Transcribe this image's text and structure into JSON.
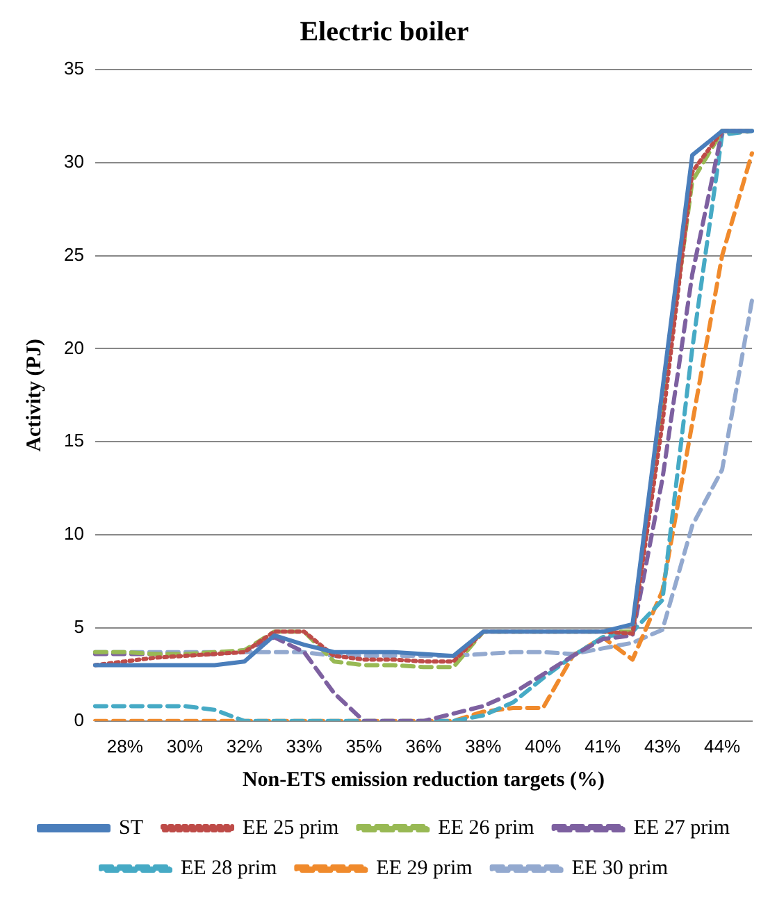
{
  "chart_data": {
    "type": "line",
    "title": "Electric boiler",
    "xlabel": "Non-ETS emission reduction targets (%)",
    "ylabel": "Activity (PJ)",
    "categories": [
      null,
      "28%",
      null,
      "30%",
      null,
      "32%",
      null,
      "33%",
      null,
      "35%",
      null,
      "36%",
      null,
      "38%",
      null,
      "40%",
      null,
      "41%",
      null,
      "43%",
      null,
      "44%",
      null
    ],
    "series": [
      {
        "name": "ST",
        "color": "#4a7ebb",
        "line_style": "solid",
        "values": [
          3,
          3,
          3,
          3,
          3,
          3.2,
          4.6,
          4.1,
          3.7,
          3.7,
          3.7,
          3.6,
          3.5,
          4.8,
          4.8,
          4.8,
          4.8,
          4.8,
          5.2,
          17.8,
          30.4,
          31.7,
          31.7
        ]
      },
      {
        "name": "EE 25 prim",
        "color": "#be4b48",
        "line_style": "dotted",
        "values": [
          3,
          3.2,
          3.4,
          3.5,
          3.6,
          3.7,
          4.8,
          4.8,
          3.5,
          3.3,
          3.3,
          3.2,
          3.2,
          4.8,
          4.8,
          4.8,
          4.8,
          4.8,
          4.7,
          16,
          29.5,
          31.7,
          31.7
        ]
      },
      {
        "name": "EE 26 prim",
        "color": "#98b954",
        "line_style": "dashed",
        "values": [
          3.7,
          3.7,
          3.6,
          3.6,
          3.7,
          3.8,
          4.8,
          4.8,
          3.2,
          3,
          3,
          2.9,
          2.9,
          4.8,
          4.8,
          4.8,
          4.8,
          4.8,
          4.8,
          17,
          29,
          31.7,
          31.7
        ]
      },
      {
        "name": "EE 27 prim",
        "color": "#7d60a0",
        "line_style": "dashed",
        "values": [
          3.6,
          3.6,
          3.6,
          3.6,
          3.6,
          3.8,
          4.5,
          3.7,
          1.5,
          0,
          0,
          0,
          0.4,
          0.8,
          1.5,
          2.5,
          3.5,
          4.4,
          4.6,
          13,
          24,
          31.7,
          31.7
        ]
      },
      {
        "name": "EE 28 prim",
        "color": "#46aac5",
        "line_style": "dashed",
        "values": [
          0.8,
          0.8,
          0.8,
          0.8,
          0.6,
          0,
          0,
          0,
          0,
          0,
          0,
          0,
          0,
          0.3,
          1,
          2.3,
          3.5,
          4.5,
          4.8,
          6.5,
          20,
          31.5,
          31.7
        ]
      },
      {
        "name": "EE 29 prim",
        "color": "#f08a2c",
        "line_style": "dashed",
        "values": [
          0,
          0,
          0,
          0,
          0,
          0,
          0,
          0,
          0,
          0,
          0,
          0,
          0,
          0.5,
          0.7,
          0.7,
          3.5,
          4.5,
          3.3,
          7,
          16,
          25,
          30.5
        ]
      },
      {
        "name": "EE 30 prim",
        "color": "#93a9cf",
        "line_style": "dashed",
        "values": [
          3.7,
          3.7,
          3.7,
          3.7,
          3.7,
          3.7,
          3.7,
          3.7,
          3.5,
          3.5,
          3.5,
          3.5,
          3.5,
          3.6,
          3.7,
          3.7,
          3.6,
          3.9,
          4.2,
          4.9,
          10.5,
          13.5,
          22.6
        ]
      }
    ],
    "ylim": [
      0,
      35
    ],
    "yticks": [
      0,
      5,
      10,
      15,
      20,
      25,
      30,
      35
    ],
    "grid": "y",
    "legend": "bottom",
    "marker": "none"
  }
}
